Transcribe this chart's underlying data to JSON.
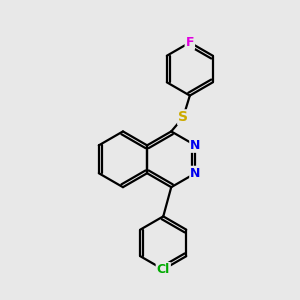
{
  "background_color": "#e8e8e8",
  "bond_color": "#000000",
  "atom_colors": {
    "F": "#e000e0",
    "S": "#ccaa00",
    "N": "#0000ee",
    "Cl": "#00aa00"
  },
  "bond_width": 1.6,
  "dpi": 100,
  "figsize": [
    3.0,
    3.0
  ],
  "xlim": [
    0.5,
    9.5
  ],
  "ylim": [
    0.2,
    11.5
  ]
}
